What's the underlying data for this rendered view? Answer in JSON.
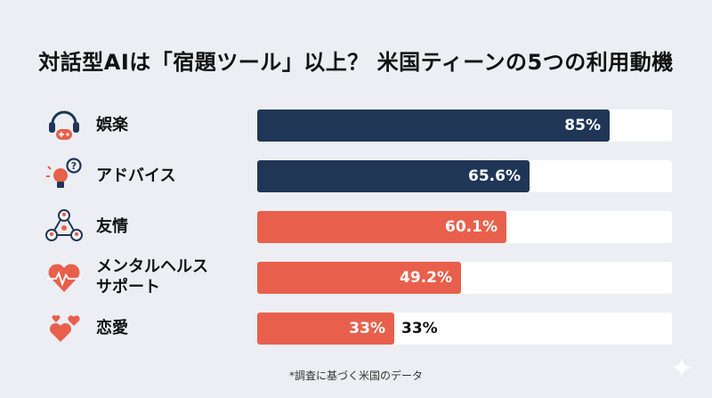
{
  "chart_data": {
    "type": "bar",
    "orientation": "horizontal",
    "title": "対話型AIは「宿題ツール」以上？ 米国ティーンの5つの利用動機",
    "categories": [
      "娯楽",
      "アドバイス",
      "友情",
      "メンタルヘルス\nサポート",
      "恋愛"
    ],
    "values": [
      85,
      65.6,
      60.1,
      49.2,
      33
    ],
    "value_labels": [
      "85%",
      "65.6%",
      "60.1%",
      "49.2%",
      "33%"
    ],
    "outside_labels": [
      "",
      "",
      "",
      "",
      "33%"
    ],
    "xlim": [
      0,
      100
    ],
    "colors": [
      "#1f3657",
      "#1f3657",
      "#e8604c",
      "#e8604c",
      "#e8604c"
    ],
    "icons": [
      "headphones-gamepad-icon",
      "lightbulb-question-icon",
      "people-network-icon",
      "heartbeat-icon",
      "hearts-icon"
    ],
    "grid": false,
    "legend": "none"
  },
  "footnote": "*調査に基づく米国のデータ",
  "track_color": "#ffffff",
  "background_color": "#eceef3"
}
